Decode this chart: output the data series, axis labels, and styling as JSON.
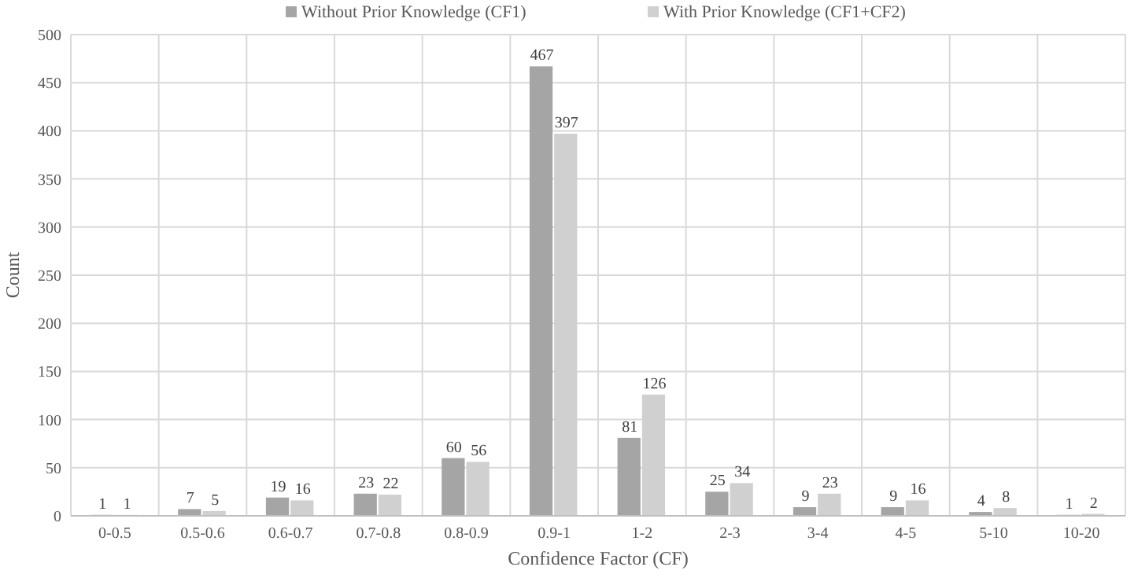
{
  "chart_data": {
    "type": "bar",
    "xlabel": "Confidence Factor (CF)",
    "ylabel": "Count",
    "categories": [
      "0-0.5",
      "0.5-0.6",
      "0.6-0.7",
      "0.7-0.8",
      "0.8-0.9",
      "0.9-1",
      "1-2",
      "2-3",
      "3-4",
      "4-5",
      "5-10",
      "10-20"
    ],
    "series": [
      {
        "name": "Without Prior Knowledge (CF1)",
        "color": "#a5a5a5",
        "values": [
          1,
          7,
          19,
          23,
          60,
          467,
          81,
          25,
          9,
          9,
          4,
          1
        ]
      },
      {
        "name": "With Prior Knowledge (CF1+CF2)",
        "color": "#d0d0d0",
        "values": [
          1,
          5,
          16,
          22,
          56,
          397,
          126,
          34,
          23,
          16,
          8,
          2
        ]
      }
    ],
    "ylim": [
      0,
      500
    ],
    "yticks": [
      0,
      50,
      100,
      150,
      200,
      250,
      300,
      350,
      400,
      450,
      500
    ],
    "grid": true,
    "legend": "top",
    "data_labels": true
  }
}
